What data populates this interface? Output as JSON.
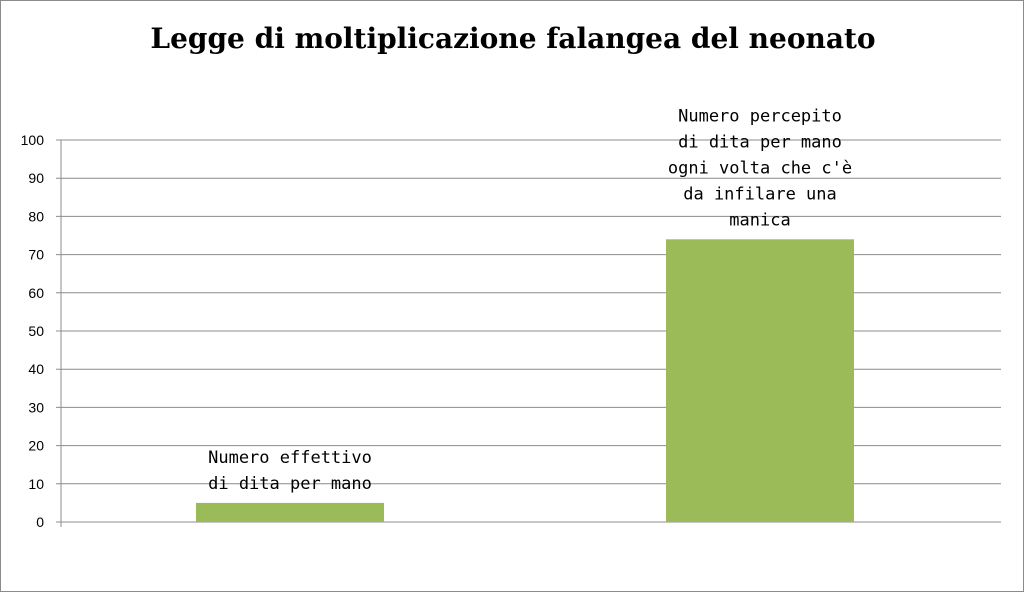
{
  "chart_data": {
    "type": "bar",
    "title": "Legge di moltiplicazione falangea del neonato",
    "xlabel": "",
    "ylabel": "",
    "ylim": [
      0,
      100
    ],
    "yticks": [
      0,
      10,
      20,
      30,
      40,
      50,
      60,
      70,
      80,
      90,
      100
    ],
    "grid": true,
    "legend": "none",
    "bar_color": "#9bbb59",
    "bars": [
      {
        "value": 5,
        "label_lines": [
          "Numero effettivo",
          "di dita per mano"
        ]
      },
      {
        "value": 74,
        "label_lines": [
          "Numero percepito",
          "di dita per mano",
          "ogni volta che c'è",
          "da infilare una",
          "manica"
        ]
      }
    ]
  }
}
